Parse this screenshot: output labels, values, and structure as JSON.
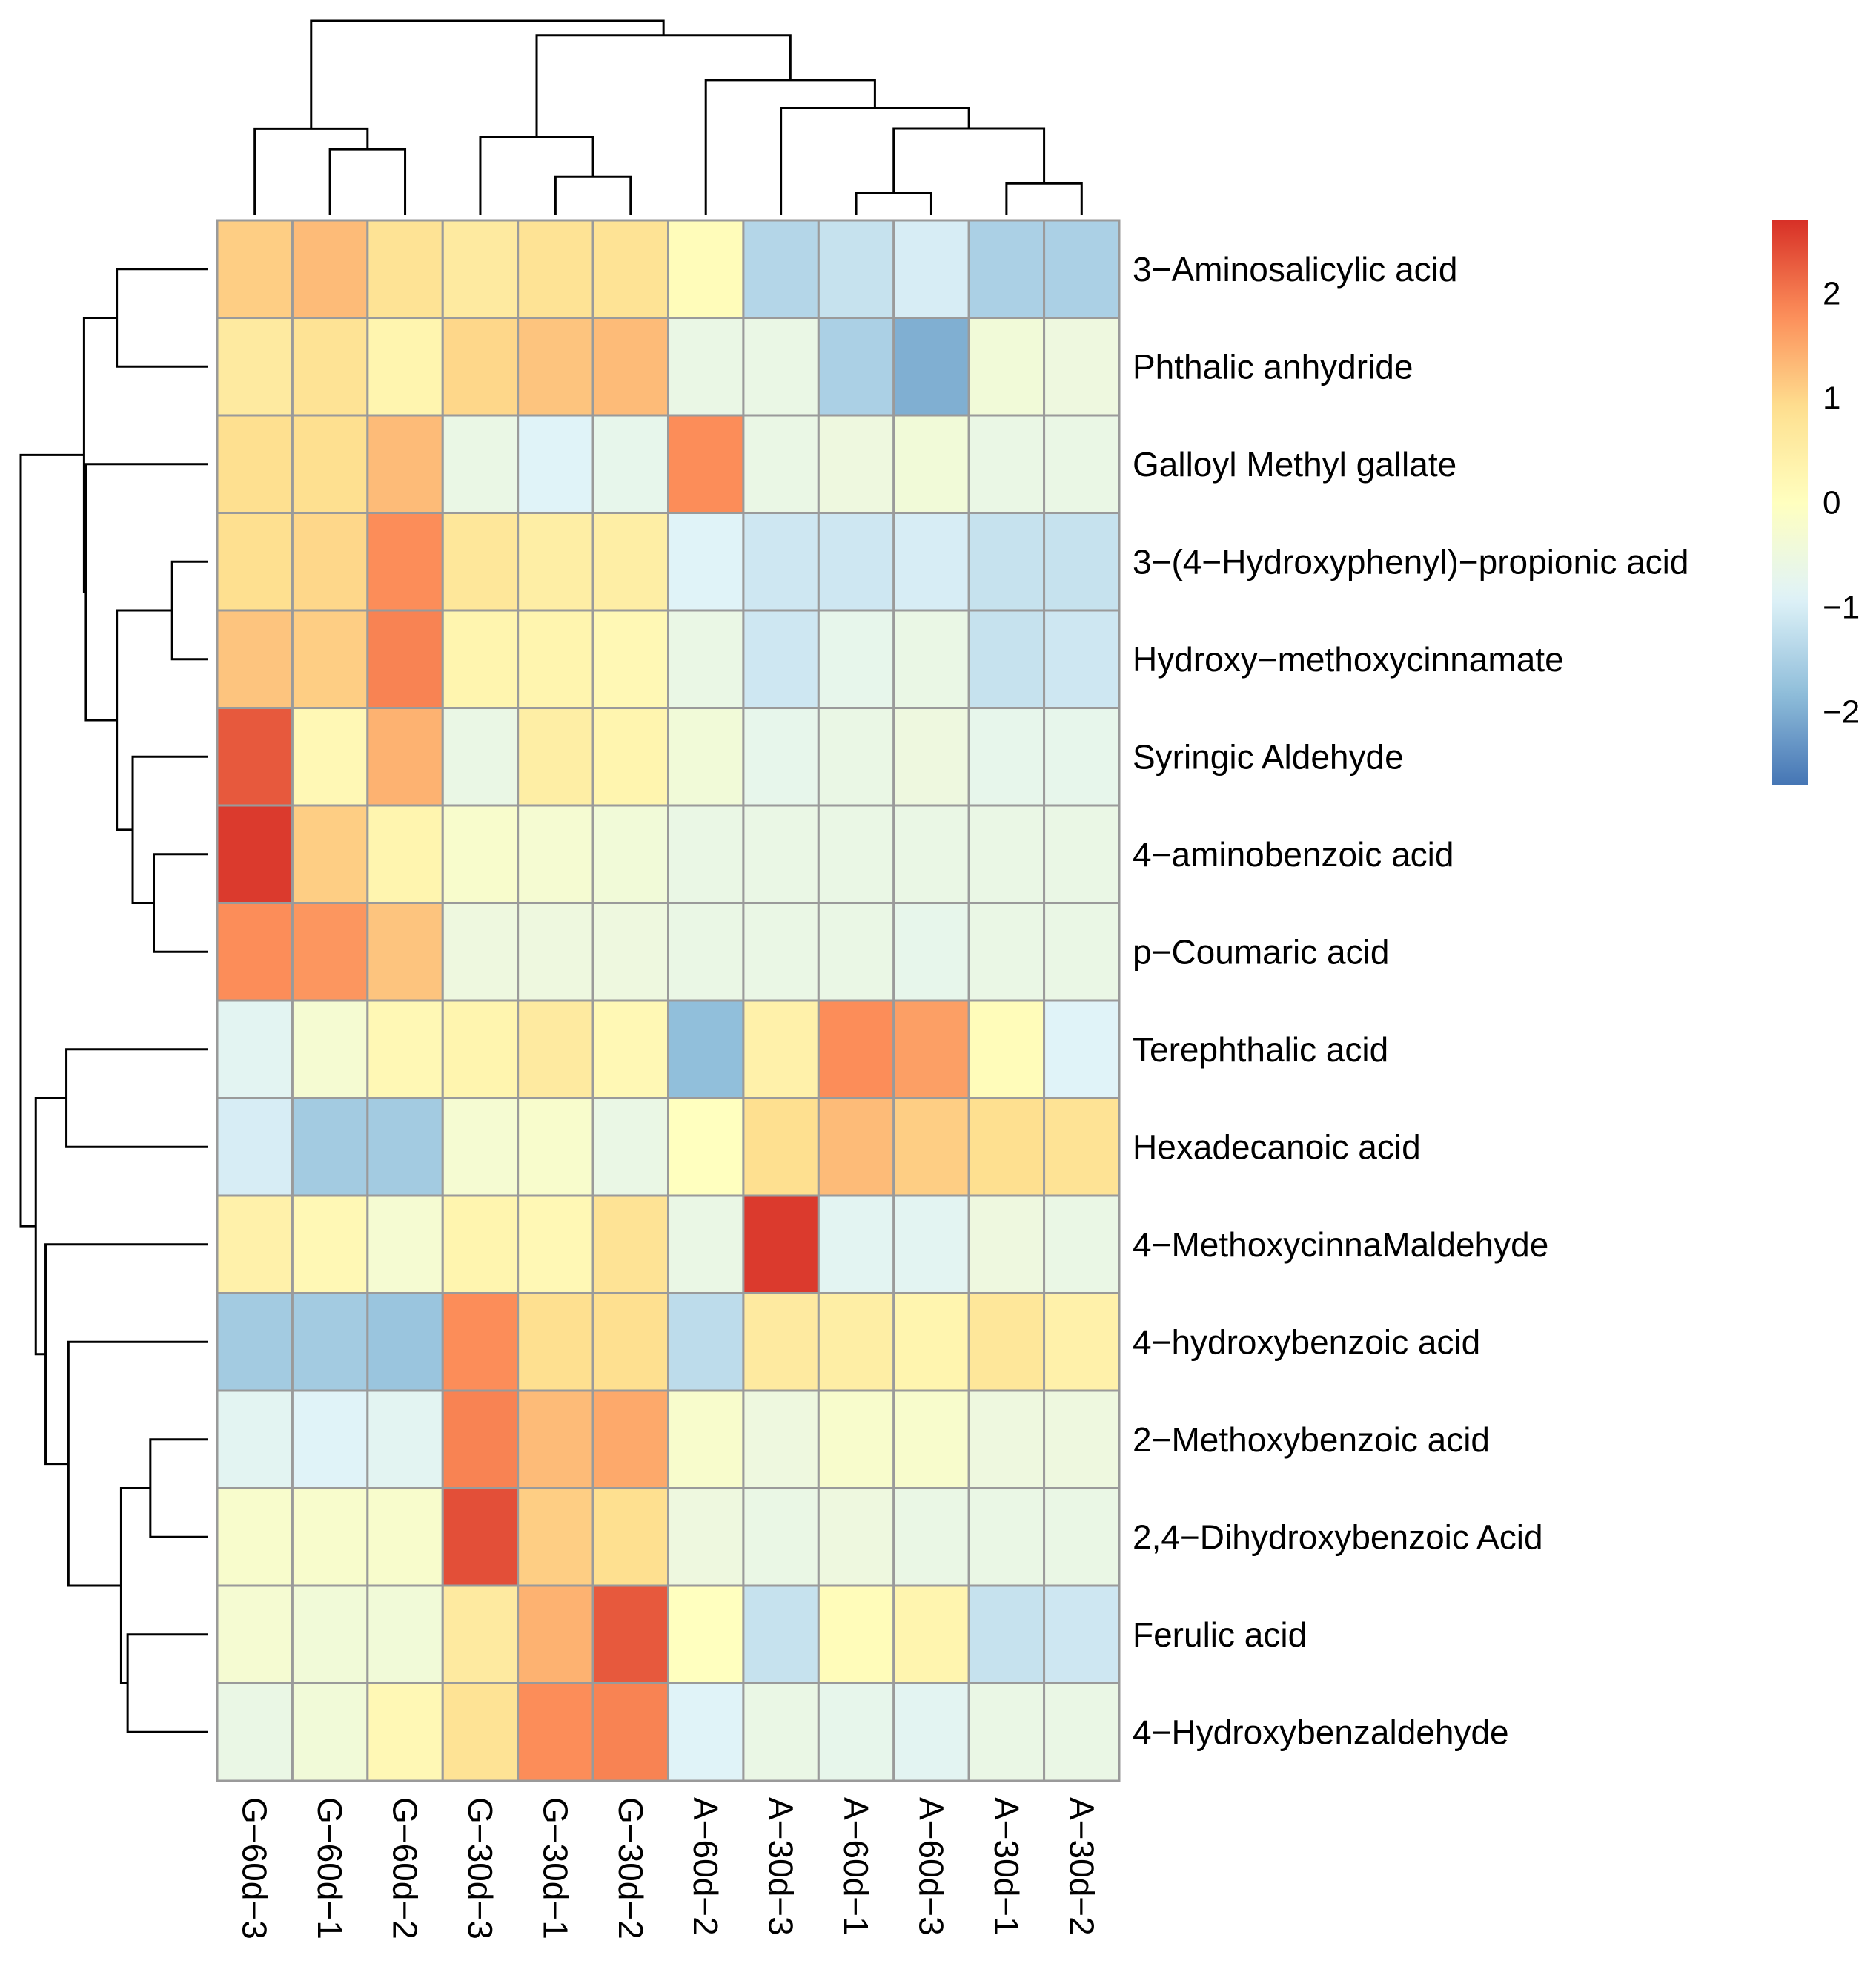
{
  "chart_data": {
    "type": "heatmap",
    "title": "",
    "columns": [
      "G-60d-3",
      "G-60d-1",
      "G-60d-2",
      "G-30d-3",
      "G-30d-1",
      "G-30d-2",
      "A-60d-2",
      "A-30d-3",
      "A-60d-1",
      "A-60d-3",
      "A-30d-1",
      "A-30d-2"
    ],
    "rows": [
      "3-Aminosalicylic acid",
      "Phthalic anhydride",
      "Galloyl Methyl gallate",
      "3-(4-Hydroxyphenyl)-propionic acid",
      "Hydroxy-methoxycinnamate",
      "Syringic Aldehyde",
      "4-aminobenzoic acid",
      "p-Coumaric acid",
      "Terephthalic acid",
      "Hexadecanoic acid",
      "4-MethoxycinnaMaldehyde",
      "4-hydroxybenzoic acid",
      "2-Methoxybenzoic acid",
      "2,4-Dihydroxybenzoic Acid",
      "Ferulic acid",
      "4-Hydroxybenzaldehyde"
    ],
    "values": [
      [
        1.1,
        1.3,
        0.8,
        0.6,
        0.8,
        0.8,
        0.1,
        -1.4,
        -1.2,
        -1.0,
        -1.5,
        -1.5
      ],
      [
        0.6,
        0.8,
        0.3,
        1.0,
        1.2,
        1.3,
        -0.6,
        -0.6,
        -1.5,
        -2.0,
        -0.4,
        -0.5
      ],
      [
        0.9,
        0.9,
        1.3,
        -0.6,
        -0.9,
        -0.7,
        1.8,
        -0.6,
        -0.5,
        -0.4,
        -0.6,
        -0.6
      ],
      [
        0.9,
        1.0,
        1.8,
        0.7,
        0.5,
        0.5,
        -0.9,
        -1.1,
        -1.1,
        -1.0,
        -1.2,
        -1.2
      ],
      [
        1.2,
        1.1,
        1.9,
        0.3,
        0.3,
        0.2,
        -0.6,
        -1.1,
        -0.7,
        -0.6,
        -1.2,
        -1.1
      ],
      [
        2.3,
        0.2,
        1.4,
        -0.6,
        0.5,
        0.3,
        -0.4,
        -0.7,
        -0.6,
        -0.5,
        -0.7,
        -0.7
      ],
      [
        2.6,
        1.1,
        0.3,
        -0.2,
        -0.3,
        -0.4,
        -0.6,
        -0.6,
        -0.6,
        -0.6,
        -0.6,
        -0.6
      ],
      [
        1.8,
        1.7,
        1.2,
        -0.5,
        -0.5,
        -0.5,
        -0.6,
        -0.6,
        -0.6,
        -0.7,
        -0.6,
        -0.6
      ],
      [
        -0.8,
        -0.3,
        0.2,
        0.3,
        0.6,
        0.2,
        -1.8,
        0.4,
        1.8,
        1.6,
        0.1,
        -0.9
      ],
      [
        -1.0,
        -1.6,
        -1.6,
        -0.3,
        -0.2,
        -0.6,
        0.0,
        0.9,
        1.3,
        1.1,
        0.9,
        0.8
      ],
      [
        0.4,
        0.2,
        -0.3,
        0.3,
        0.2,
        0.8,
        -0.6,
        2.6,
        -0.8,
        -0.8,
        -0.5,
        -0.6
      ],
      [
        -1.6,
        -1.6,
        -1.7,
        1.8,
        0.9,
        0.9,
        -1.3,
        0.6,
        0.5,
        0.3,
        0.7,
        0.4
      ],
      [
        -0.8,
        -0.9,
        -0.8,
        1.9,
        1.3,
        1.5,
        -0.2,
        -0.5,
        -0.2,
        -0.2,
        -0.5,
        -0.5
      ],
      [
        -0.2,
        -0.2,
        -0.2,
        2.4,
        1.1,
        0.9,
        -0.5,
        -0.6,
        -0.5,
        -0.6,
        -0.6,
        -0.6
      ],
      [
        -0.3,
        -0.4,
        -0.4,
        0.6,
        1.4,
        2.3,
        0.0,
        -1.2,
        0.1,
        0.3,
        -1.2,
        -1.1
      ],
      [
        -0.6,
        -0.4,
        0.2,
        0.8,
        1.8,
        1.9,
        -0.9,
        -0.6,
        -0.7,
        -0.8,
        -0.6,
        -0.6
      ]
    ],
    "color_scale": {
      "min": -2.7,
      "max": 2.7,
      "ticks": [
        2,
        1,
        0,
        -1,
        -2
      ],
      "tick_labels": [
        "2",
        "1",
        "0",
        "−1",
        "−2"
      ],
      "colors": [
        "#4575b4",
        "#91bfdb",
        "#e0f3f8",
        "#ffffbf",
        "#fee090",
        "#fc8d59",
        "#d73027"
      ]
    },
    "row_dendrogram": [
      [
        0,
        1
      ],
      [
        3,
        4
      ],
      [
        6,
        7
      ],
      [
        5,
        18
      ],
      [
        17,
        19
      ],
      [
        2,
        20
      ],
      [
        16,
        21
      ],
      [
        8,
        9
      ],
      [
        12,
        13
      ],
      [
        14,
        15
      ],
      [
        24,
        25
      ],
      [
        11,
        26
      ],
      [
        10,
        27
      ],
      [
        23,
        28
      ],
      [
        22,
        29
      ]
    ],
    "col_dendrogram": [
      [
        1,
        2
      ],
      [
        0,
        12
      ],
      [
        4,
        5
      ],
      [
        3,
        14
      ],
      [
        8,
        9
      ],
      [
        10,
        11
      ],
      [
        16,
        17
      ],
      [
        7,
        18
      ],
      [
        6,
        19
      ],
      [
        15,
        20
      ],
      [
        13,
        21
      ]
    ]
  }
}
